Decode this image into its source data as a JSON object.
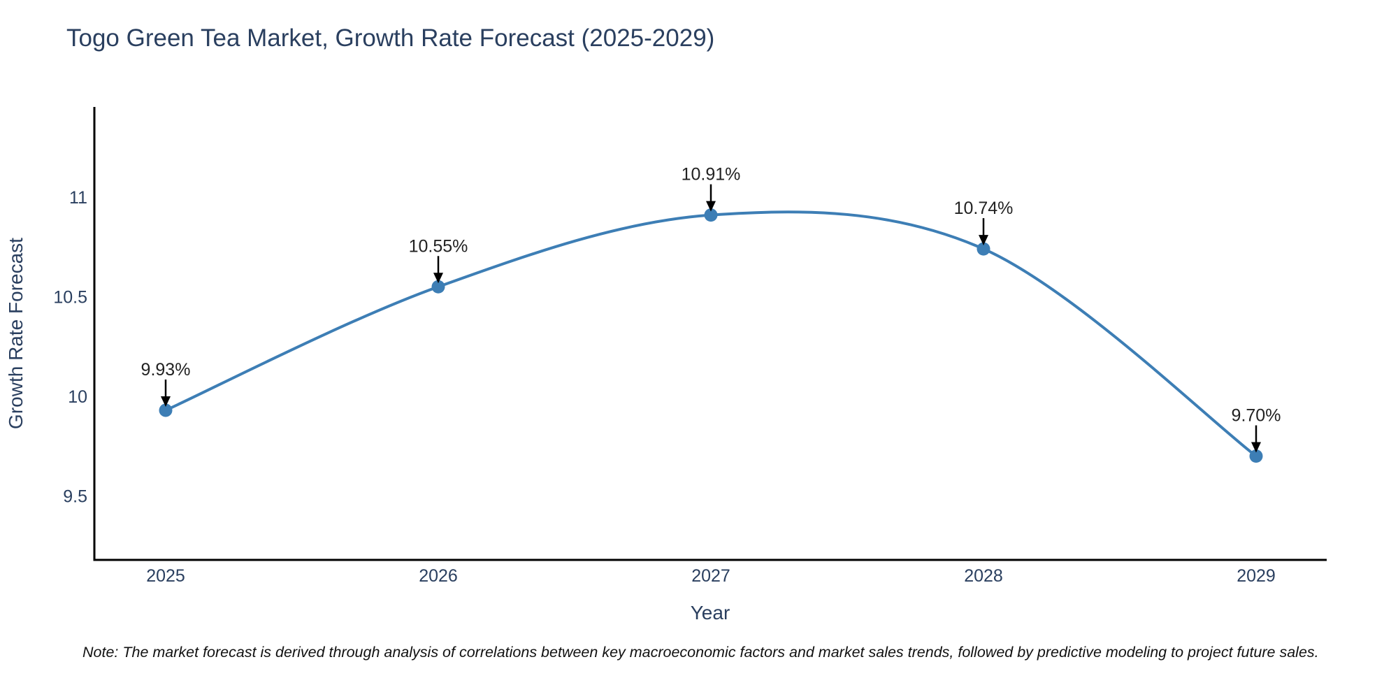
{
  "chart_data": {
    "type": "line",
    "title": "Togo Green Tea Market, Growth Rate Forecast (2025-2029)",
    "xlabel": "Year",
    "ylabel": "Growth Rate Forecast",
    "categories": [
      "2025",
      "2026",
      "2027",
      "2028",
      "2029"
    ],
    "series": [
      {
        "name": "Growth Rate Forecast",
        "values": [
          9.93,
          10.55,
          10.91,
          10.74,
          9.7
        ]
      }
    ],
    "point_labels": [
      "9.93%",
      "10.55%",
      "10.91%",
      "10.74%",
      "9.70%"
    ],
    "ytick_values": [
      9.5,
      10,
      10.5,
      11
    ],
    "ytick_labels": [
      "9.5",
      "10",
      "10.5",
      "11"
    ],
    "ylim": [
      9.18,
      11.45
    ],
    "grid": false,
    "legend": "none",
    "line_color": "#3d7eb5",
    "marker_color": "#3d7eb5",
    "annotation_arrow_color": "#000000",
    "axis_color": "#000000",
    "note": "Note: The market forecast is derived through analysis of correlations between key macroeconomic factors and market sales trends, followed by predictive modeling to project future sales."
  }
}
